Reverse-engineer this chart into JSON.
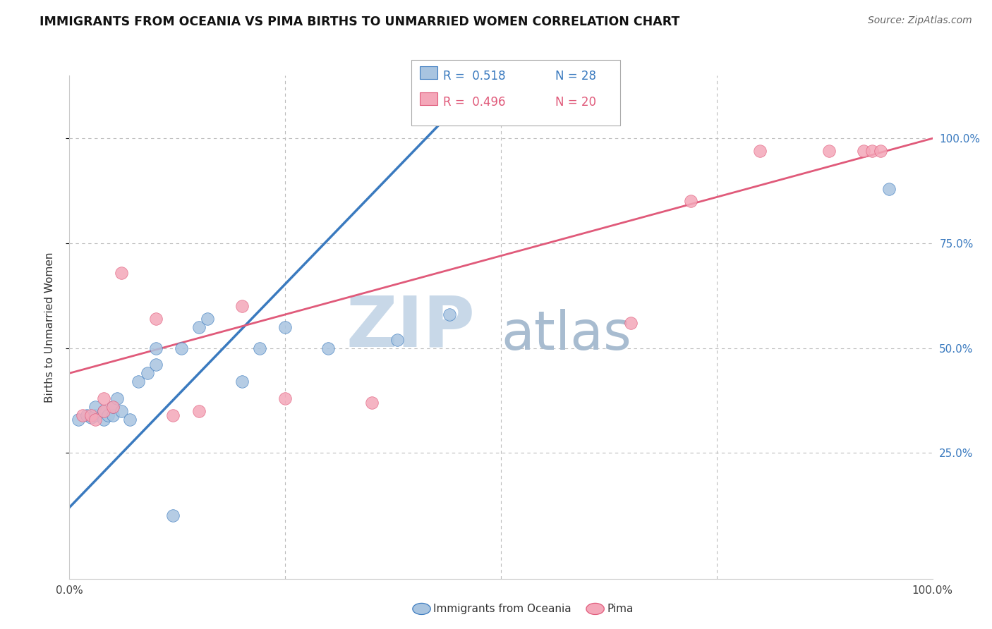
{
  "title": "IMMIGRANTS FROM OCEANIA VS PIMA BIRTHS TO UNMARRIED WOMEN CORRELATION CHART",
  "source": "Source: ZipAtlas.com",
  "ylabel": "Births to Unmarried Women",
  "xlim": [
    0,
    1
  ],
  "ylim": [
    -0.05,
    1.15
  ],
  "legend_blue_label": "Immigrants from Oceania",
  "legend_pink_label": "Pima",
  "legend_R_blue": "R =  0.518",
  "legend_N_blue": "N = 28",
  "legend_R_pink": "R =  0.496",
  "legend_N_pink": "N = 20",
  "blue_scatter_x": [
    0.01,
    0.02,
    0.025,
    0.03,
    0.03,
    0.04,
    0.04,
    0.045,
    0.05,
    0.05,
    0.055,
    0.06,
    0.07,
    0.08,
    0.09,
    0.1,
    0.1,
    0.12,
    0.13,
    0.15,
    0.16,
    0.2,
    0.22,
    0.25,
    0.3,
    0.38,
    0.44,
    0.95
  ],
  "blue_scatter_y": [
    0.33,
    0.34,
    0.335,
    0.34,
    0.36,
    0.33,
    0.35,
    0.34,
    0.34,
    0.36,
    0.38,
    0.35,
    0.33,
    0.42,
    0.44,
    0.46,
    0.5,
    0.1,
    0.5,
    0.55,
    0.57,
    0.42,
    0.5,
    0.55,
    0.5,
    0.52,
    0.58,
    0.88
  ],
  "pink_scatter_x": [
    0.015,
    0.025,
    0.03,
    0.04,
    0.04,
    0.05,
    0.06,
    0.1,
    0.12,
    0.15,
    0.2,
    0.25,
    0.35,
    0.65,
    0.72,
    0.8,
    0.88,
    0.92,
    0.93,
    0.94
  ],
  "pink_scatter_y": [
    0.34,
    0.34,
    0.33,
    0.35,
    0.38,
    0.36,
    0.68,
    0.57,
    0.34,
    0.35,
    0.6,
    0.38,
    0.37,
    0.56,
    0.85,
    0.97,
    0.97,
    0.97,
    0.97,
    0.97
  ],
  "blue_line_x0": 0.0,
  "blue_line_y0": 0.12,
  "blue_line_x1": 0.46,
  "blue_line_y1": 1.1,
  "pink_line_x0": 0.0,
  "pink_line_y0": 0.44,
  "pink_line_x1": 1.0,
  "pink_line_y1": 1.0,
  "blue_color": "#a8c4e0",
  "blue_line_color": "#3a7abf",
  "pink_color": "#f4a7b9",
  "pink_line_color": "#e05a7a",
  "background_color": "#ffffff",
  "grid_color": "#bbbbbb",
  "title_fontsize": 12.5,
  "watermark_zip": "ZIP",
  "watermark_atlas": "atlas",
  "watermark_color_zip": "#c8d8e8",
  "watermark_color_atlas": "#a8bcd0"
}
